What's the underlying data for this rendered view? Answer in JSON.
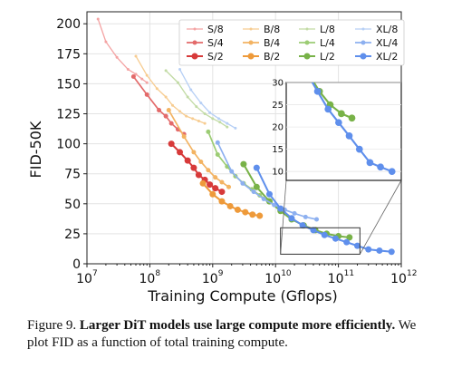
{
  "chart_data": {
    "type": "scatter",
    "xscale": "log",
    "xlabel": "Training Compute (Gflops)",
    "ylabel": "FID-50K",
    "xlim": [
      10000000,
      1000000000000
    ],
    "ylim": [
      0,
      210
    ],
    "x_ticks": [
      {
        "value": 10000000,
        "base": "10",
        "exp": "7"
      },
      {
        "value": 100000000,
        "base": "10",
        "exp": "8"
      },
      {
        "value": 1000000000,
        "base": "10",
        "exp": "9"
      },
      {
        "value": 10000000000,
        "base": "10",
        "exp": "10"
      },
      {
        "value": 100000000000,
        "base": "10",
        "exp": "11"
      },
      {
        "value": 1000000000000,
        "base": "10",
        "exp": "12"
      }
    ],
    "y_ticks": [
      "0",
      "25",
      "50",
      "75",
      "100",
      "125",
      "150",
      "175",
      "200"
    ],
    "y_tick_values": [
      0,
      25,
      50,
      75,
      100,
      125,
      150,
      175,
      200
    ],
    "grid": true,
    "legend_position": "top-right",
    "series": [
      {
        "name": "S/8",
        "color": "#f4a3a3",
        "size": 1.5,
        "x": [
          15000000,
          20000000,
          30000000,
          45000000,
          60000000,
          75000000,
          90000000
        ],
        "y": [
          204,
          185,
          172,
          162,
          158,
          154,
          151
        ]
      },
      {
        "name": "S/4",
        "color": "#e36a6a",
        "size": 2.5,
        "x": [
          55000000,
          90000000,
          140000000,
          180000000,
          220000000,
          280000000,
          350000000
        ],
        "y": [
          156,
          141,
          128,
          123,
          117,
          112,
          108
        ]
      },
      {
        "name": "S/2",
        "color": "#d73a3a",
        "size": 3.5,
        "x": [
          220000000,
          300000000,
          400000000,
          500000000,
          600000000,
          750000000,
          900000000,
          1100000000,
          1400000000
        ],
        "y": [
          100,
          93,
          86,
          80,
          74,
          70,
          66,
          63,
          60
        ]
      },
      {
        "name": "B/8",
        "color": "#f7cc90",
        "size": 1.5,
        "x": [
          60000000,
          90000000,
          130000000,
          180000000,
          230000000,
          300000000,
          380000000,
          480000000,
          600000000,
          750000000
        ],
        "y": [
          173,
          157,
          146,
          139,
          132,
          127,
          123,
          121,
          119,
          117
        ]
      },
      {
        "name": "B/4",
        "color": "#f3b362",
        "size": 2.5,
        "x": [
          200000000,
          350000000,
          500000000,
          650000000,
          850000000,
          1100000000,
          1400000000,
          1800000000
        ],
        "y": [
          128,
          106,
          93,
          85,
          78,
          72,
          68,
          64
        ]
      },
      {
        "name": "B/2",
        "color": "#ee9a3a",
        "size": 3.5,
        "x": [
          700000000,
          1000000000,
          1400000000,
          1900000000,
          2500000000,
          3300000000,
          4300000000,
          5600000000
        ],
        "y": [
          67,
          58,
          52,
          48,
          45,
          43,
          41,
          40
        ]
      },
      {
        "name": "L/8",
        "color": "#c2dba5",
        "size": 1.5,
        "x": [
          180000000,
          280000000,
          400000000,
          550000000,
          750000000,
          1000000000,
          1300000000,
          1700000000
        ],
        "y": [
          161,
          151,
          139,
          131,
          125,
          121,
          118,
          114
        ]
      },
      {
        "name": "L/4",
        "color": "#9ccc74",
        "size": 2.5,
        "x": [
          850000000,
          1200000000,
          1700000000,
          2300000000,
          3100000000,
          4200000000,
          5600000000,
          7500000000
        ],
        "y": [
          110,
          91,
          81,
          73,
          67,
          62,
          57,
          53
        ]
      },
      {
        "name": "L/2",
        "color": "#78b248",
        "size": 3.5,
        "x": [
          3100000000,
          5000000000,
          8000000000,
          12000000000,
          18000000000,
          28000000000,
          43000000000,
          65000000000,
          100000000000,
          150000000000
        ],
        "y": [
          83,
          64,
          52,
          44,
          37,
          32,
          28,
          25,
          23,
          22
        ]
      },
      {
        "name": "XL/8",
        "color": "#b6cff5",
        "size": 1.5,
        "x": [
          300000000,
          450000000,
          650000000,
          900000000,
          1250000000,
          1700000000,
          2300000000
        ],
        "y": [
          162,
          145,
          134,
          126,
          121,
          117,
          113
        ]
      },
      {
        "name": "XL/4",
        "color": "#8db0f0",
        "size": 2.5,
        "x": [
          1200000000,
          2000000000,
          3000000000,
          4500000000,
          6500000000,
          9500000000,
          14000000000,
          20000000000,
          30000000000,
          45000000000
        ],
        "y": [
          101,
          77,
          67,
          60,
          54,
          49,
          45,
          42,
          39,
          37
        ]
      },
      {
        "name": "XL/2",
        "color": "#5f8fec",
        "size": 3.5,
        "x": [
          5000000000,
          8000000000,
          12000000000,
          18000000000,
          27000000000,
          40000000000,
          60000000000,
          90000000000,
          135000000000,
          200000000000,
          300000000000,
          450000000000,
          700000000000
        ],
        "y": [
          80,
          58,
          46,
          38,
          32,
          28,
          24,
          21,
          18,
          15,
          12,
          11,
          10
        ]
      }
    ],
    "inset": {
      "xlim": [
        12000000000,
        1000000000000
      ],
      "ylim": [
        8,
        30
      ],
      "y_ticks": [
        "10",
        "15",
        "20",
        "25",
        "30"
      ],
      "y_tick_values": [
        10,
        15,
        20,
        25,
        30
      ]
    }
  },
  "caption": {
    "lead": "Figure 9.",
    "bold": "Larger DiT models use large compute more efficiently.",
    "rest": "We plot FID as a function of total training compute."
  }
}
